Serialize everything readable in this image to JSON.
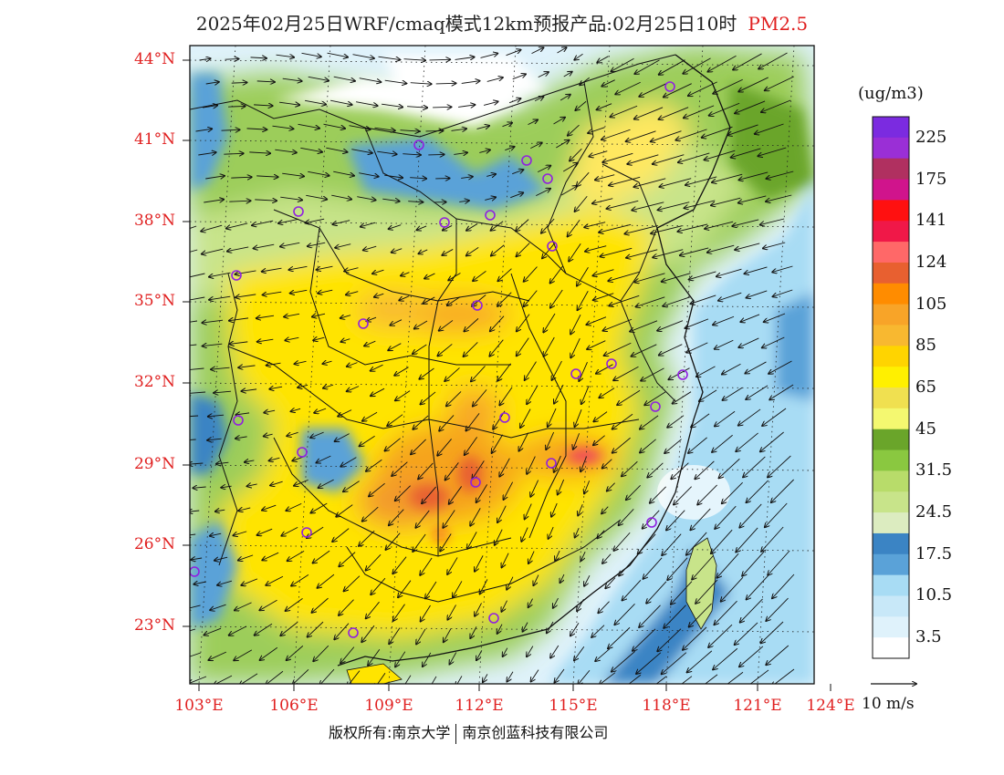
{
  "title": {
    "main": "2025年02月25日WRF/cmaq模式12km预报产品:02月25日10时",
    "pollutant": "PM2.5"
  },
  "axes": {
    "lat_ticks": [
      "44°N",
      "41°N",
      "38°N",
      "35°N",
      "32°N",
      "29°N",
      "26°N",
      "23°N"
    ],
    "lon_ticks": [
      "103°E",
      "106°E",
      "109°E",
      "112°E",
      "115°E",
      "118°E",
      "121°E",
      "124°E"
    ]
  },
  "colorbar": {
    "unit": "(ug/m3)",
    "labels": [
      "225",
      "175",
      "141",
      "124",
      "105",
      "85",
      "65",
      "45",
      "31.5",
      "24.5",
      "17.5",
      "10.5",
      "3.5"
    ],
    "colors": [
      "#7b2be0",
      "#9a2fd6",
      "#b03060",
      "#d0148c",
      "#ff1010",
      "#f01848",
      "#ff6868",
      "#e86030",
      "#ff8c00",
      "#f8a428",
      "#f8b830",
      "#ffd400",
      "#fff000",
      "#f0e050",
      "#f4f870",
      "#6aa52a",
      "#8ac840",
      "#b8dc6a",
      "#c8e48a",
      "#dcecc0",
      "#3b84c4",
      "#5aa2d8",
      "#a8dcf4",
      "#c8e8f8",
      "#dff2fb",
      "#ffffff"
    ]
  },
  "wind_scale": {
    "label": "10 m/s"
  },
  "footer": {
    "left": "版权所有:南京大学",
    "right": "南京创蓝科技有限公司"
  },
  "colors": {
    "axis_label": "#e02020",
    "station_marker": "#9020e0"
  }
}
